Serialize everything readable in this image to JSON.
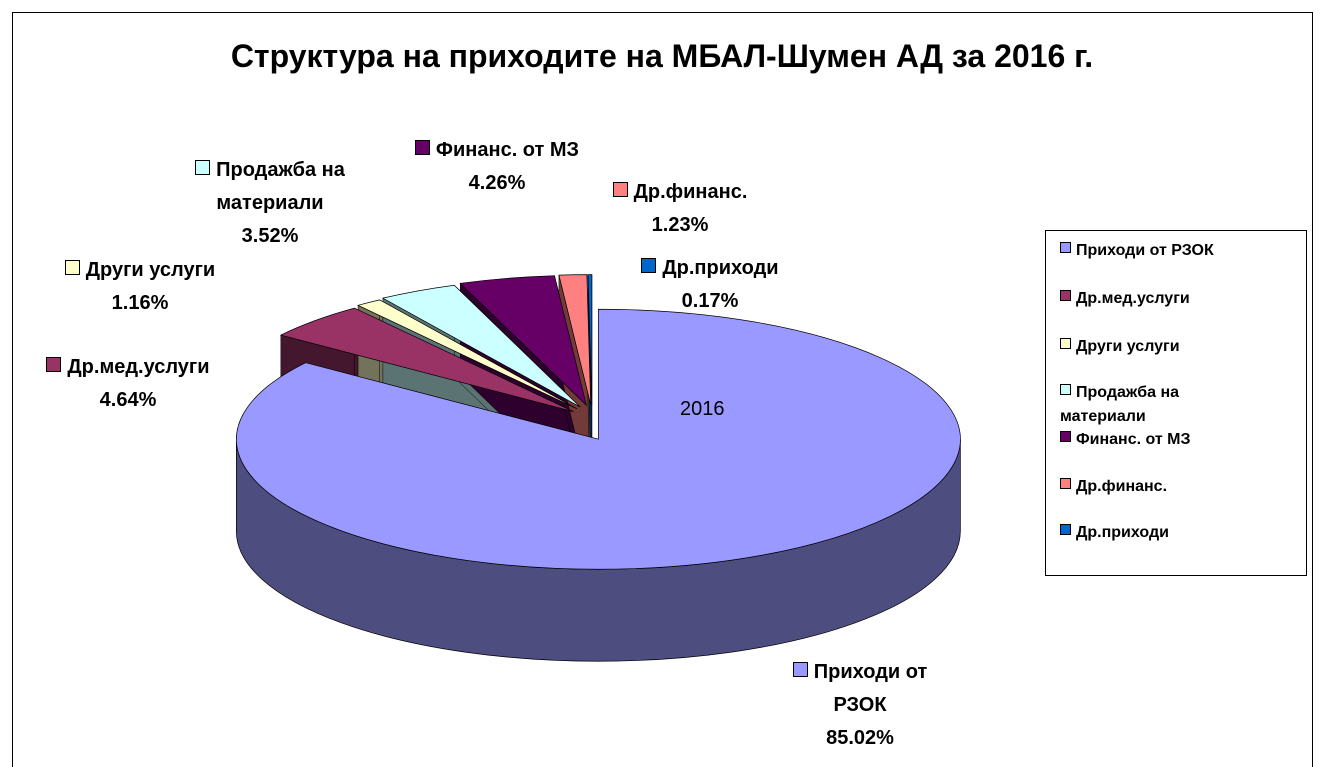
{
  "chart_data": {
    "type": "pie",
    "title": "Структура на приходите на МБАЛ-Шумен АД за 2016 г.",
    "annotation": "2016",
    "categories": [
      "Приходи от РЗОК",
      "Др.мед.услуги",
      "Други услуги",
      "Продажба на материали",
      "Финанс. от МЗ",
      "Др.финанс.",
      "Др.приходи"
    ],
    "values": [
      85.02,
      4.64,
      1.16,
      3.52,
      4.26,
      1.23,
      0.17
    ],
    "value_labels": [
      "85.02%",
      "4.64%",
      "1.16%",
      "3.52%",
      "4.26%",
      "1.23%",
      "0.17%"
    ],
    "colors": [
      "#9999ff",
      "#993366",
      "#ffffcc",
      "#ccffff",
      "#660066",
      "#ff8080",
      "#0066cc"
    ],
    "legend": "right"
  }
}
